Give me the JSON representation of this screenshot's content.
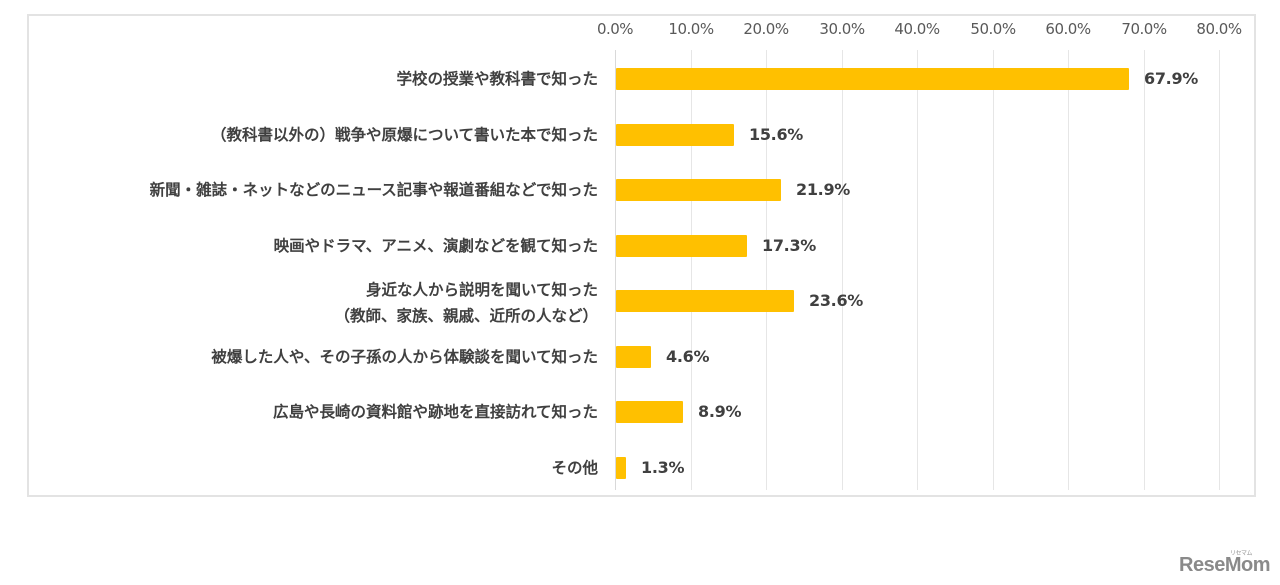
{
  "chart_data": {
    "type": "bar",
    "orientation": "horizontal",
    "title": "",
    "xlabel": "",
    "ylabel": "",
    "xlim": [
      0,
      80
    ],
    "x_ticks": [
      "0.0%",
      "10.0%",
      "20.0%",
      "30.0%",
      "40.0%",
      "50.0%",
      "60.0%",
      "70.0%",
      "80.0%"
    ],
    "x_axis_position": "top",
    "grid": true,
    "legend": null,
    "bar_color": "#FFC000",
    "categories": [
      "学校の授業や教科書で知った",
      "（教科書以外の）戦争や原爆について書いた本で知った",
      "新聞・雑誌・ネットなどのニュース記事や報道番組などで知った",
      "映画やドラマ、アニメ、演劇などを観て知った",
      "身近な人から説明を聞いて知った（教師、家族、親戚、近所の人など）",
      "被爆した人や、その子孫の人から体験談を聞いて知った",
      "広島や長崎の資料館や跡地を直接訪れて知った",
      "その他"
    ],
    "values": [
      67.9,
      15.6,
      21.9,
      17.3,
      23.6,
      4.6,
      8.9,
      1.3
    ],
    "value_labels": [
      "67.9%",
      "15.6%",
      "21.9%",
      "17.3%",
      "23.6%",
      "4.6%",
      "8.9%",
      "1.3%"
    ]
  },
  "rows": [
    {
      "label_lines": [
        "学校の授業や教科書で知った"
      ],
      "value": 67.9,
      "value_label": "67.9%"
    },
    {
      "label_lines": [
        "（教科書以外の）戦争や原爆について書いた本で知った"
      ],
      "value": 15.6,
      "value_label": "15.6%"
    },
    {
      "label_lines": [
        "新聞・雑誌・ネットなどのニュース記事や報道番組などで知った"
      ],
      "value": 21.9,
      "value_label": "21.9%"
    },
    {
      "label_lines": [
        "映画やドラマ、アニメ、演劇などを観て知った"
      ],
      "value": 17.3,
      "value_label": "17.3%"
    },
    {
      "label_lines": [
        "身近な人から説明を聞いて知った",
        "（教師、家族、親戚、近所の人など）"
      ],
      "value": 23.6,
      "value_label": "23.6%"
    },
    {
      "label_lines": [
        "被爆した人や、その子孫の人から体験談を聞いて知った"
      ],
      "value": 4.6,
      "value_label": "4.6%"
    },
    {
      "label_lines": [
        "広島や長崎の資料館や跡地を直接訪れて知った"
      ],
      "value": 8.9,
      "value_label": "8.9%"
    },
    {
      "label_lines": [
        "その他"
      ],
      "value": 1.3,
      "value_label": "1.3%"
    }
  ],
  "watermark": {
    "text": "ReseMom",
    "subtext": "リセマム"
  }
}
